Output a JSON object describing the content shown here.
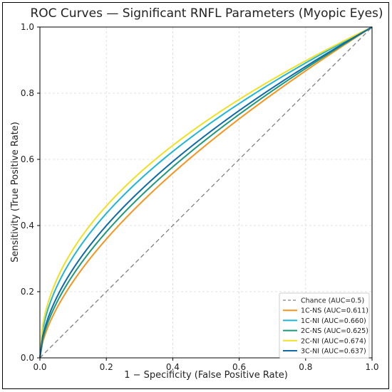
{
  "chart_data": {
    "type": "line",
    "title": "ROC Curves — Significant RNFL Parameters (Myopic Eyes)",
    "xlabel": "1 − Specificity (False Positive Rate)",
    "ylabel": "Sensitivity (True Positive Rate)",
    "xlim": [
      0,
      1
    ],
    "ylim": [
      0,
      1
    ],
    "xticks": [
      "0.0",
      "0.2",
      "0.4",
      "0.6",
      "0.8",
      "1.0"
    ],
    "yticks": [
      "0.0",
      "0.2",
      "0.4",
      "0.6",
      "0.8",
      "1.0"
    ],
    "grid": true,
    "legend_position": "lower-right",
    "chance": {
      "name": "Chance (AUC=0.5)",
      "color": "#808080"
    },
    "series": [
      {
        "name": "1C-NS (AUC=0.611)",
        "auc": 0.611,
        "color": "#f7941d"
      },
      {
        "name": "1C-NI (AUC=0.660)",
        "auc": 0.66,
        "color": "#1fb5d6"
      },
      {
        "name": "2C-NS (AUC=0.625)",
        "auc": 0.625,
        "color": "#1a9a7a"
      },
      {
        "name": "2C-NI (AUC=0.674)",
        "auc": 0.674,
        "color": "#f0e020"
      },
      {
        "name": "3C-NI (AUC=0.637)",
        "auc": 0.637,
        "color": "#0e6aa8"
      }
    ]
  }
}
